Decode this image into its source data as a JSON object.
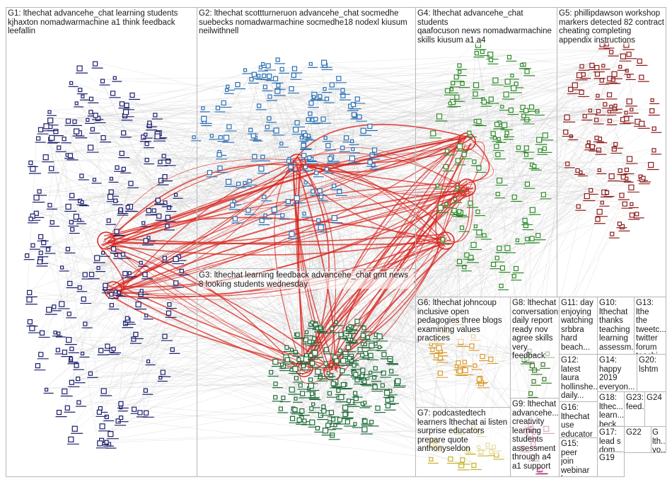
{
  "colors": {
    "edge_gray": "#c9c9c9",
    "edge_red": "#d8251f",
    "box_border": "#b7b7b7",
    "g1": "#1c1f6b",
    "g2": "#2b6fb2",
    "g3": "#1f6b3a",
    "g4": "#2f8a2b",
    "g5": "#8c1c1c",
    "g6": "#d99a2b",
    "g7": "#c8b22a",
    "g8": "#3c7a2a",
    "g9": "#b33a7a",
    "g10": "#7a7a2a",
    "g11": "#5a3c8a"
  },
  "groups": [
    {
      "id": "g1",
      "label": "G1: lthechat advancehe_chat learning students\nkjhaxton nomadwarmachine a1 think feedback\nleefallin"
    },
    {
      "id": "g2",
      "label": "G2: lthechat scottturneruon advancehe_chat socmedhe\nsuebecks nomadwarmachine socmedhe18 nodexl kiusum\nneilwithnell"
    },
    {
      "id": "g3",
      "label": "G3: lthechat learning feedback advancehe_chat gmt news\n8 looking students wednesday"
    },
    {
      "id": "g4",
      "label": "G4: lthechat advancehe_chat students\nqaafocuson news nomadwarmachine\nskills kiusum a1 a4"
    },
    {
      "id": "g5",
      "label": "G5: phillipdawson workshop\nmarkers detected 82 contract\ncheating completing\nappendix instructions"
    },
    {
      "id": "g6",
      "label": "G6: lthechat johncoup\ninclusive open\npedagogies three blogs\nexamining values\npractices"
    },
    {
      "id": "g7",
      "label": "G7: podcastedtech\nlearners lthechat ai listen\nsurprise educators\nprepare quote\nanthonyseldon"
    },
    {
      "id": "g8",
      "label": "G8: lthechat\nconversation\ndaily report\nready nov\nagree skills\nvery\nfeedback"
    },
    {
      "id": "g9",
      "label": "G9: lthechat\nadvancehe...\ncreativity\nlearning\nstudents\nassessment\nthrough a4\na1 support"
    },
    {
      "id": "g10",
      "label": "G10:\nlthechat\nthanks\nteaching\nlearning\nassessm..."
    },
    {
      "id": "g11",
      "label": "G11: day\nenjoying\nwatching\nsrbbra\nhard\nbeach..."
    },
    {
      "id": "g12",
      "label": "G12:\nlatest\nlaura\nhollinshe...\ndaily..."
    },
    {
      "id": "g13",
      "label": "G13:\nlthe\nthe tweetc...\ntwitter\nforum\nteachi..."
    },
    {
      "id": "g14",
      "label": "G14:\nhappy\n2019\neveryon..."
    },
    {
      "id": "g15",
      "label": "G15: peer\njoin\nwebinar\nhear..."
    },
    {
      "id": "g16",
      "label": "G16:\nlthechat\nuse\neducator"
    },
    {
      "id": "g17",
      "label": "G17:\nlead s\ndom...\narticl..."
    },
    {
      "id": "g18",
      "label": "G18:\nlthec...\nlearn...\nbeck..."
    },
    {
      "id": "g19",
      "label": "G19"
    },
    {
      "id": "g20",
      "label": "G20:\nlshtm"
    },
    {
      "id": "g22",
      "label": "G22"
    },
    {
      "id": "g23",
      "label": "G23:\nfeed..."
    },
    {
      "id": "g24",
      "label": "G24"
    },
    {
      "id": "g25",
      "label": "G\nlth...\nvo..."
    }
  ]
}
